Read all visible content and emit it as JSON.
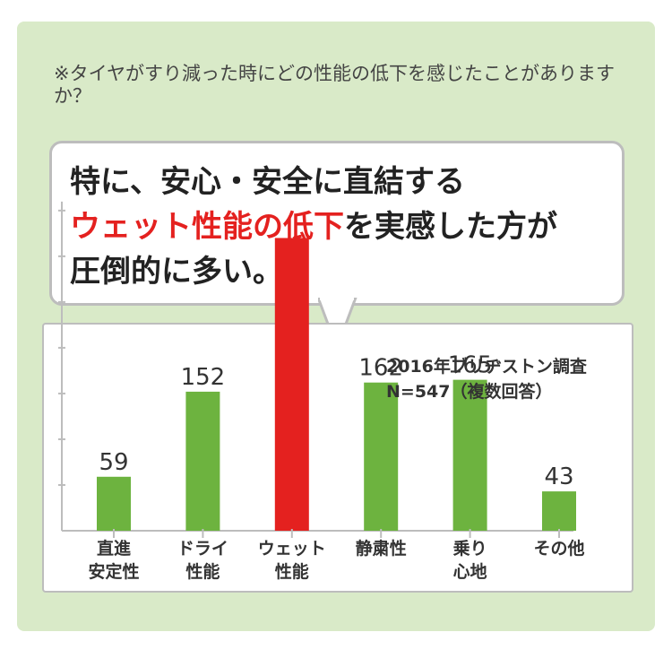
{
  "question": "※タイヤがすり減った時にどの性能の低下を感じたことがありますか？",
  "headline": {
    "line1": "特に、安心・安全に直結する",
    "highlight": "ウェット性能の低下",
    "line2_rest": "を実感した方が",
    "line3": "圧倒的に多い。"
  },
  "survey": {
    "line1": "2016年ブリヂストン調査",
    "line2": "N=547（複数回答）"
  },
  "colors": {
    "accent": "#e4211f",
    "bar": "#6db33f",
    "background": "#d9eac8"
  },
  "chart_data": {
    "type": "bar",
    "categories": [
      [
        "直進",
        "安定性"
      ],
      [
        "ドライ",
        "性能"
      ],
      [
        "ウェット",
        "性能"
      ],
      [
        "静粛性"
      ],
      [
        "乗り",
        "心地"
      ],
      [
        "その他"
      ]
    ],
    "values": [
      59,
      152,
      320,
      162,
      165,
      43
    ],
    "data_labels": [
      "59",
      "152",
      "",
      "162",
      "165",
      "43"
    ],
    "highlight_index": 2,
    "ylim": [
      0,
      350
    ],
    "y_gridlines": [
      50,
      100,
      150,
      200,
      250,
      300,
      350
    ],
    "title": "",
    "xlabel": "",
    "ylabel": "",
    "grid": false
  }
}
